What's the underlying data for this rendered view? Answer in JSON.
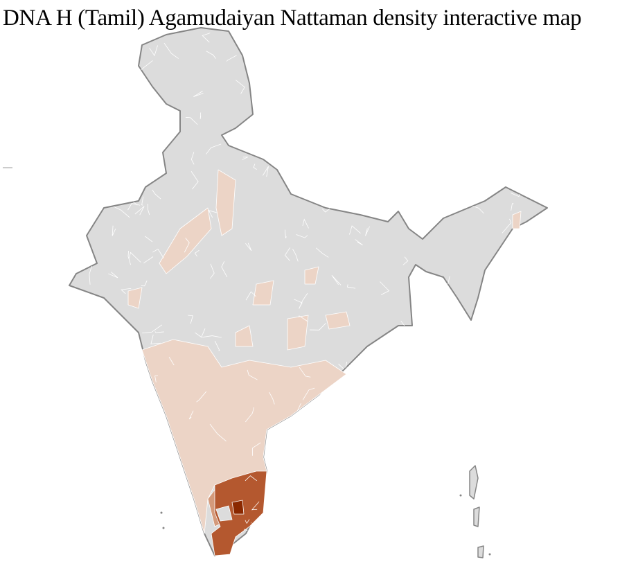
{
  "title": "DNA H (Tamil) Agamudaiyan Nattaman density interactive map",
  "map": {
    "region": "India districts",
    "colors": {
      "no_data": "#dcdcdc",
      "low": "#ecd4c6",
      "medium": "#d49a7b",
      "high": "#b4582f",
      "highest": "#8a2800",
      "border": "#858585",
      "district_lines": "#ffffff"
    }
  }
}
